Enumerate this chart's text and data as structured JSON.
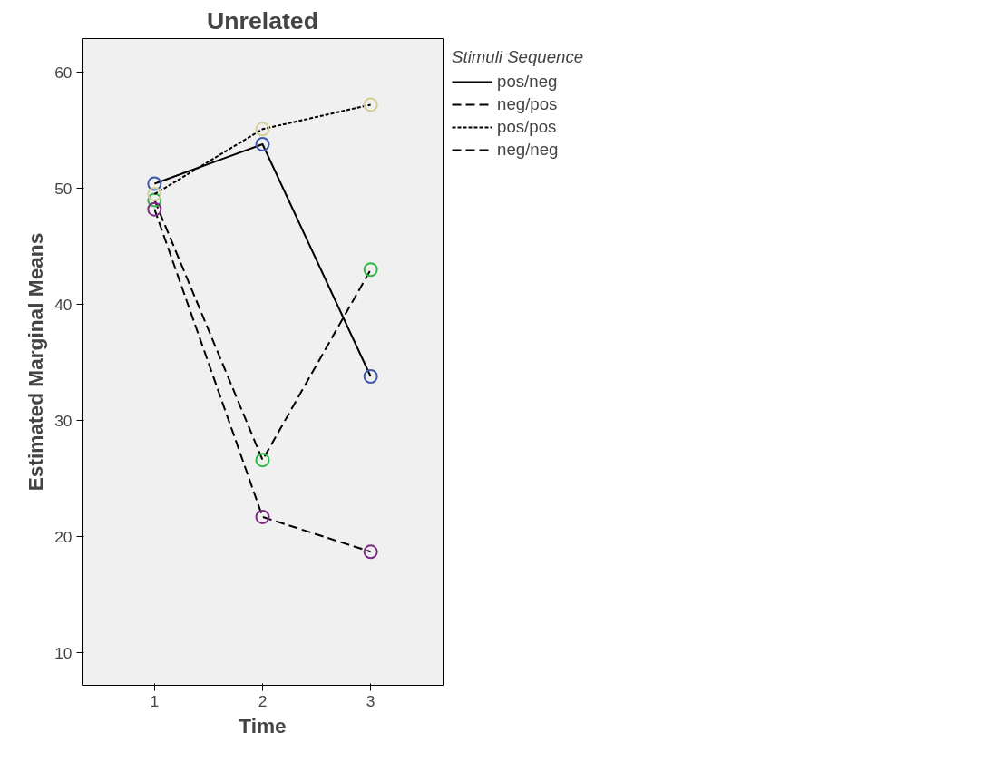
{
  "chart_data": {
    "type": "line",
    "title": "Unrelated",
    "xlabel": "Time",
    "ylabel": "Estimated Marginal Means",
    "legend_title": "Stimuli Sequence",
    "x": [
      1,
      2,
      3
    ],
    "xlim": [
      0.33,
      3.67
    ],
    "xticks": [
      1,
      2,
      3
    ],
    "ylim": [
      7.2,
      62.9
    ],
    "yticks": [
      10,
      20,
      30,
      40,
      50,
      60
    ],
    "grid": false,
    "legend": "top right",
    "marker": "circle",
    "series": [
      {
        "name": "pos/neg",
        "color": "#000000",
        "colors": [
          "#3e58ac",
          "#3e58ac",
          "#3e58ac"
        ],
        "line_style": "solid",
        "values": [
          50.4,
          53.8,
          33.8
        ]
      },
      {
        "name": "neg/pos",
        "color": "#000000",
        "colors": [
          "#2eb848",
          "#2eb848",
          "#2eb848"
        ],
        "line_style": "dashed",
        "values": [
          49.0,
          26.6,
          43.0
        ]
      },
      {
        "name": "pos/pos",
        "color": "#000000",
        "colors": [
          "#d3ce97",
          "#d3ce97",
          "#d3ce97"
        ],
        "line_style": "dotted",
        "values": [
          49.5,
          55.1,
          57.2
        ]
      },
      {
        "name": "neg/neg",
        "color": "#000000",
        "colors": [
          "#7a2a80",
          "#7a2a80",
          "#7a2a80"
        ],
        "line_style": "dashed",
        "values": [
          48.2,
          21.7,
          18.7
        ]
      }
    ]
  }
}
